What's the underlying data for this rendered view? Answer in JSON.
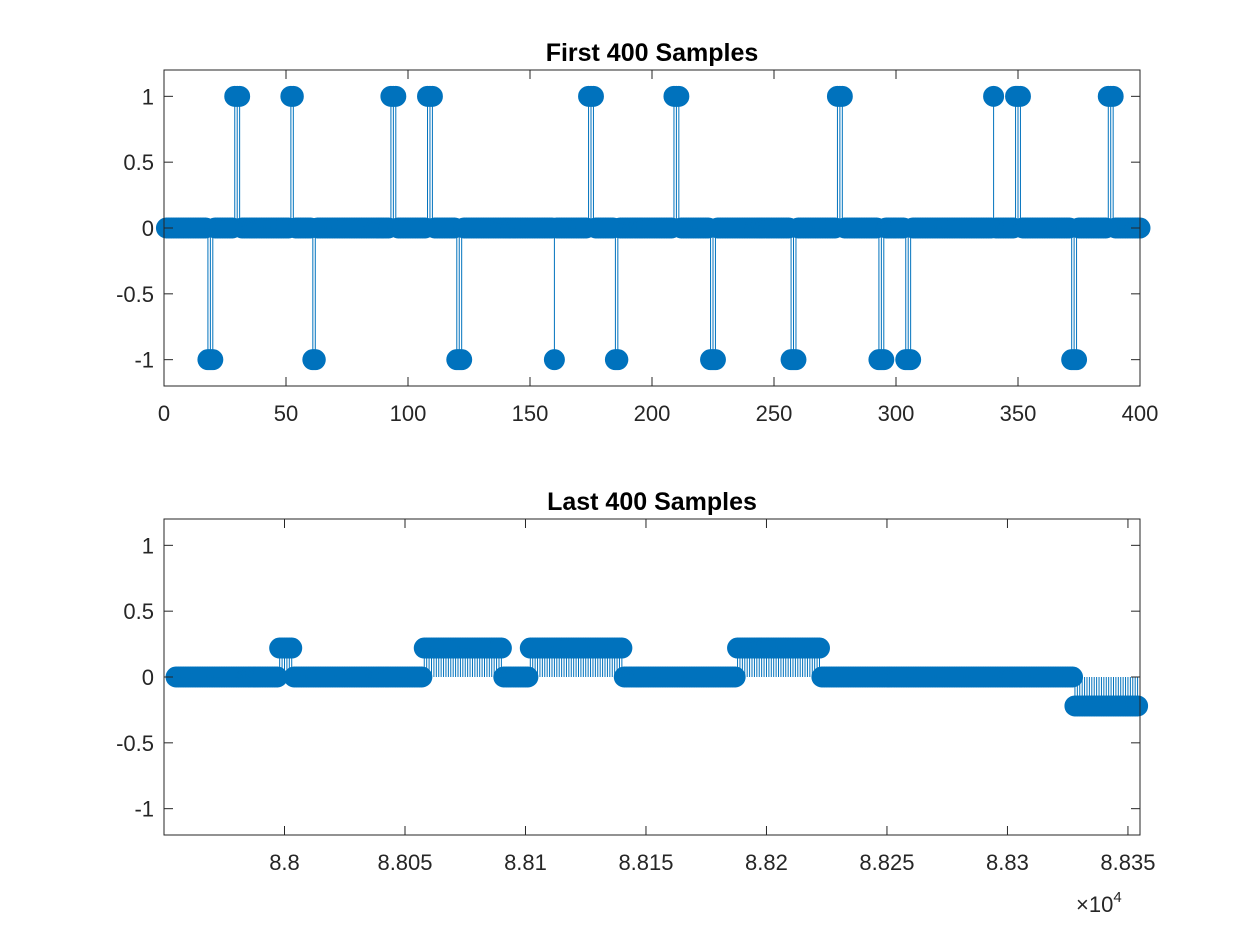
{
  "figure": {
    "colors": {
      "series": "#0072BD",
      "axes": "#262626",
      "background": "#ffffff"
    }
  },
  "chart_data": [
    {
      "type": "stem",
      "title": "First 400 Samples",
      "xlabel": "",
      "ylabel": "",
      "xlim": [
        0,
        400
      ],
      "ylim": [
        -1.2,
        1.2
      ],
      "xticks": [
        0,
        50,
        100,
        150,
        200,
        250,
        300,
        350,
        400
      ],
      "xtick_labels": [
        "0",
        "50",
        "100",
        "150",
        "200",
        "250",
        "300",
        "350",
        "400"
      ],
      "yticks": [
        -1,
        -0.5,
        0,
        0.5,
        1
      ],
      "ytick_labels": [
        "-1",
        "-0.5",
        "0",
        "0.5",
        "1"
      ],
      "grid": false,
      "series": [
        {
          "x_range": [
            1,
            400
          ],
          "default_value": 0,
          "nonzero": [
            {
              "x": 18,
              "y": -1
            },
            {
              "x": 19,
              "y": -1
            },
            {
              "x": 20,
              "y": -1
            },
            {
              "x": 29,
              "y": 1
            },
            {
              "x": 30,
              "y": 1
            },
            {
              "x": 31,
              "y": 1
            },
            {
              "x": 52,
              "y": 1
            },
            {
              "x": 53,
              "y": 1
            },
            {
              "x": 61,
              "y": -1
            },
            {
              "x": 62,
              "y": -1
            },
            {
              "x": 93,
              "y": 1
            },
            {
              "x": 94,
              "y": 1
            },
            {
              "x": 95,
              "y": 1
            },
            {
              "x": 108,
              "y": 1
            },
            {
              "x": 109,
              "y": 1
            },
            {
              "x": 110,
              "y": 1
            },
            {
              "x": 120,
              "y": -1
            },
            {
              "x": 121,
              "y": -1
            },
            {
              "x": 122,
              "y": -1
            },
            {
              "x": 160,
              "y": -1
            },
            {
              "x": 174,
              "y": 1
            },
            {
              "x": 175,
              "y": 1
            },
            {
              "x": 176,
              "y": 1
            },
            {
              "x": 185,
              "y": -1
            },
            {
              "x": 186,
              "y": -1
            },
            {
              "x": 209,
              "y": 1
            },
            {
              "x": 210,
              "y": 1
            },
            {
              "x": 211,
              "y": 1
            },
            {
              "x": 224,
              "y": -1
            },
            {
              "x": 225,
              "y": -1
            },
            {
              "x": 226,
              "y": -1
            },
            {
              "x": 257,
              "y": -1
            },
            {
              "x": 258,
              "y": -1
            },
            {
              "x": 259,
              "y": -1
            },
            {
              "x": 276,
              "y": 1
            },
            {
              "x": 277,
              "y": 1
            },
            {
              "x": 278,
              "y": 1
            },
            {
              "x": 293,
              "y": -1
            },
            {
              "x": 294,
              "y": -1
            },
            {
              "x": 295,
              "y": -1
            },
            {
              "x": 304,
              "y": -1
            },
            {
              "x": 305,
              "y": -1
            },
            {
              "x": 306,
              "y": -1
            },
            {
              "x": 340,
              "y": 1
            },
            {
              "x": 349,
              "y": 1
            },
            {
              "x": 350,
              "y": 1
            },
            {
              "x": 351,
              "y": 1
            },
            {
              "x": 372,
              "y": -1
            },
            {
              "x": 373,
              "y": -1
            },
            {
              "x": 374,
              "y": -1
            },
            {
              "x": 387,
              "y": 1
            },
            {
              "x": 388,
              "y": 1
            },
            {
              "x": 389,
              "y": 1
            }
          ]
        }
      ]
    },
    {
      "type": "stem",
      "title": "Last 400 Samples",
      "xlabel": "",
      "ylabel": "",
      "xlim": [
        87950,
        88355
      ],
      "ylim": [
        -1.2,
        1.2
      ],
      "xticks": [
        88000,
        88050,
        88100,
        88150,
        88200,
        88250,
        88300,
        88350
      ],
      "xtick_labels": [
        "8.8",
        "8.805",
        "8.81",
        "8.815",
        "8.82",
        "8.825",
        "8.83",
        "8.835"
      ],
      "x_exponent_label": "×10",
      "x_exponent": "4",
      "yticks": [
        -1,
        -0.5,
        0,
        0.5,
        1
      ],
      "ytick_labels": [
        "-1",
        "-0.5",
        "0",
        "0.5",
        "1"
      ],
      "grid": false,
      "series": [
        {
          "x_range": [
            87955,
            88354
          ],
          "default_value": 0,
          "segments": [
            {
              "from": 87998,
              "to": 88003,
              "y": 0.22
            },
            {
              "from": 88058,
              "to": 88090,
              "y": 0.22
            },
            {
              "from": 88102,
              "to": 88140,
              "y": 0.22
            },
            {
              "from": 88188,
              "to": 88222,
              "y": 0.22
            },
            {
              "from": 88328,
              "to": 88354,
              "y": -0.22
            }
          ]
        }
      ]
    }
  ]
}
